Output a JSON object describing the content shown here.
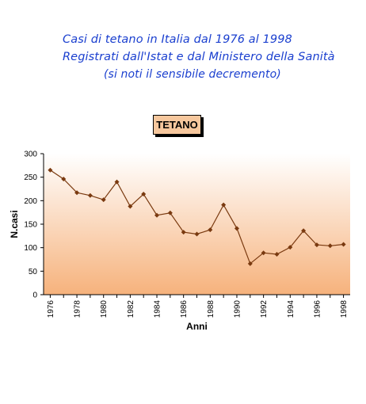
{
  "header": {
    "line1": "Casi di tetano in Italia dal 1976 al 1998",
    "line2": "Registrati dall'Istat e dal Ministero della Sanità",
    "line3": "(si noti il sensibile decremento)"
  },
  "chart_data": {
    "type": "line",
    "title": "TETANO",
    "xlabel": "Anni",
    "ylabel": "N.casi",
    "ylim": [
      0,
      300
    ],
    "yticks": [
      0,
      50,
      100,
      150,
      200,
      250,
      300
    ],
    "x": [
      1976,
      1977,
      1978,
      1979,
      1980,
      1981,
      1982,
      1983,
      1984,
      1985,
      1986,
      1987,
      1988,
      1989,
      1990,
      1991,
      1992,
      1993,
      1994,
      1995,
      1996,
      1997,
      1998
    ],
    "xtick_labels": [
      "1976",
      "1978",
      "1980",
      "1982",
      "1984",
      "1986",
      "1988",
      "1990",
      "1992",
      "1994",
      "1996",
      "1998"
    ],
    "series": [
      {
        "values": [
          265,
          246,
          217,
          211,
          202,
          240,
          188,
          214,
          169,
          174,
          133,
          129,
          138,
          191,
          141,
          66,
          89,
          86,
          101,
          136,
          106,
          104,
          107
        ]
      }
    ],
    "grid": false,
    "colors": {
      "line": "#7a3a10",
      "marker": "#7a3a10",
      "fill_top": "#ffffff",
      "fill_bottom": "#f6b27c"
    }
  }
}
